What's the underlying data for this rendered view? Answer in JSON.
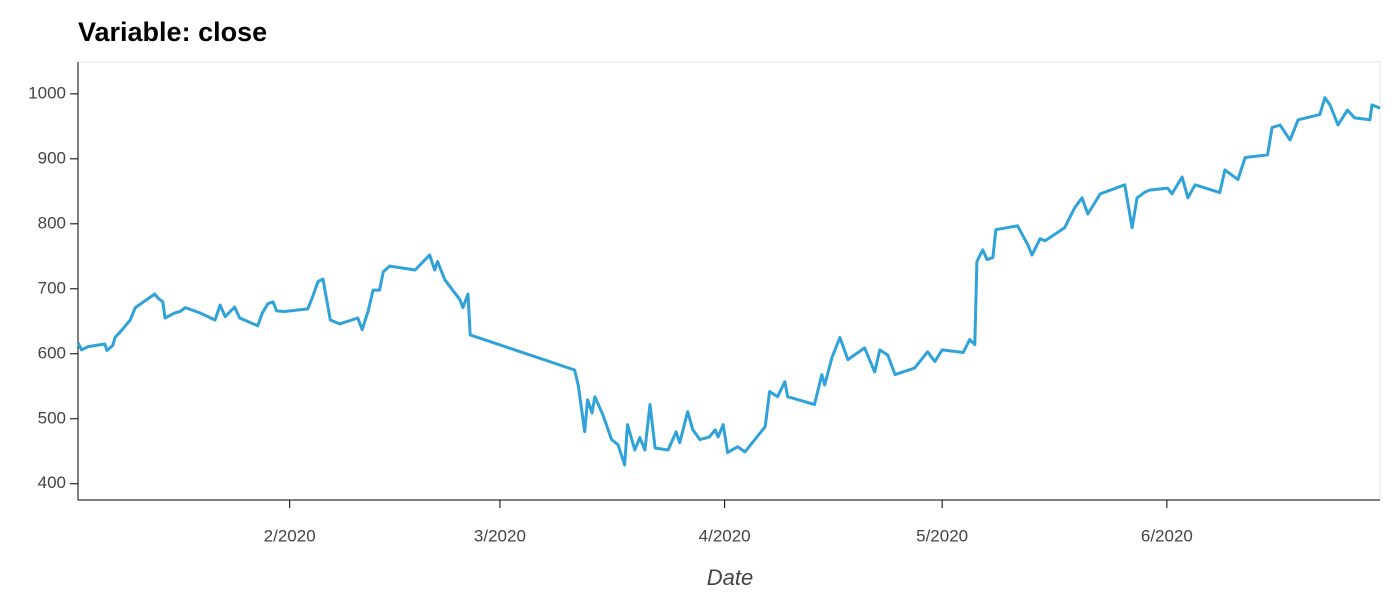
{
  "chart_data": {
    "type": "line",
    "title": "Variable: close",
    "x_label": "Date",
    "color": "#30a2da",
    "x": [
      1.8,
      2.3,
      3.2,
      5.5,
      5.8,
      6.6,
      6.9,
      7.9,
      9.0,
      9.7,
      12.4,
      12.8,
      13.5,
      13.8,
      15.2,
      15.9,
      16.6,
      18.6,
      20.7,
      21.4,
      22.1,
      23.4,
      24.1,
      26.6,
      27.2,
      28.0,
      28.7,
      29.2,
      30.3,
      33.5,
      34.1,
      34.9,
      35.6,
      36.6,
      37.9,
      40.4,
      41.0,
      41.8,
      42.5,
      43.4,
      43.9,
      44.8,
      48.3,
      49.7,
      50.3,
      51.0,
      51.4,
      52.4,
      54.5,
      54.9,
      55.6,
      55.9,
      70.3,
      70.8,
      71.7,
      72.1,
      72.7,
      73.1,
      74.2,
      75.4,
      76.3,
      77.2,
      77.6,
      78.6,
      79.3,
      80.0,
      80.7,
      81.4,
      83.2,
      84.3,
      84.8,
      85.9,
      86.6,
      87.6,
      88.9,
      89.7,
      90.1,
      90.8,
      91.4,
      92.8,
      93.8,
      96.6,
      97.2,
      98.3,
      99.3,
      99.7,
      103.4,
      104.4,
      104.8,
      105.8,
      106.9,
      108.0,
      110.3,
      111.7,
      112.4,
      113.5,
      114.5,
      117.2,
      119.0,
      120.0,
      121.0,
      123.9,
      124.8,
      125.5,
      125.8,
      126.6,
      127.2,
      128.0,
      128.4,
      131.4,
      132.8,
      133.4,
      134.5,
      135.2,
      137.9,
      139.3,
      140.3,
      141.1,
      142.8,
      146.2,
      147.2,
      147.9,
      149.0,
      149.7,
      152.1,
      152.7,
      154.1,
      154.9,
      155.9,
      159.3,
      160.0,
      161.8,
      162.8,
      165.9,
      166.5,
      167.6,
      169.0,
      170.1,
      173.1,
      173.8,
      174.5,
      175.6,
      176.9,
      177.9,
      180.0,
      180.3,
      181.4
    ],
    "values": [
      617,
      606,
      611,
      615,
      605,
      613,
      625,
      637,
      652,
      671,
      692,
      686,
      680,
      655,
      663,
      665,
      671,
      663,
      652,
      675,
      657,
      672,
      655,
      643,
      662,
      677,
      680,
      666,
      665,
      669,
      686,
      711,
      715,
      652,
      646,
      655,
      637,
      665,
      698,
      698,
      726,
      735,
      729,
      745,
      752,
      729,
      742,
      714,
      683,
      671,
      692,
      629,
      575,
      552,
      480,
      529,
      509,
      534,
      506,
      468,
      460,
      429,
      491,
      452,
      471,
      452,
      522,
      455,
      452,
      480,
      463,
      511,
      483,
      468,
      472,
      483,
      472,
      491,
      448,
      457,
      449,
      488,
      542,
      534,
      557,
      534,
      522,
      568,
      552,
      594,
      625,
      591,
      609,
      572,
      606,
      598,
      568,
      578,
      603,
      588,
      606,
      602,
      622,
      614,
      742,
      760,
      745,
      748,
      791,
      797,
      768,
      752,
      777,
      774,
      794,
      825,
      840,
      815,
      846,
      860,
      794,
      840,
      849,
      852,
      855,
      846,
      872,
      840,
      860,
      848,
      883,
      868,
      902,
      906,
      948,
      952,
      929,
      960,
      968,
      994,
      983,
      952,
      975,
      963,
      960,
      983,
      978
    ],
    "xlim": [
      1.8,
      181.4
    ],
    "xticks": [
      {
        "value": 31,
        "label": "2/2020"
      },
      {
        "value": 60,
        "label": "3/2020"
      },
      {
        "value": 91,
        "label": "4/2020"
      },
      {
        "value": 121,
        "label": "5/2020"
      },
      {
        "value": 152,
        "label": "6/2020"
      }
    ],
    "ylim": [
      375,
      1049
    ],
    "yticks": [
      400,
      500,
      600,
      700,
      800,
      900,
      1000
    ]
  }
}
